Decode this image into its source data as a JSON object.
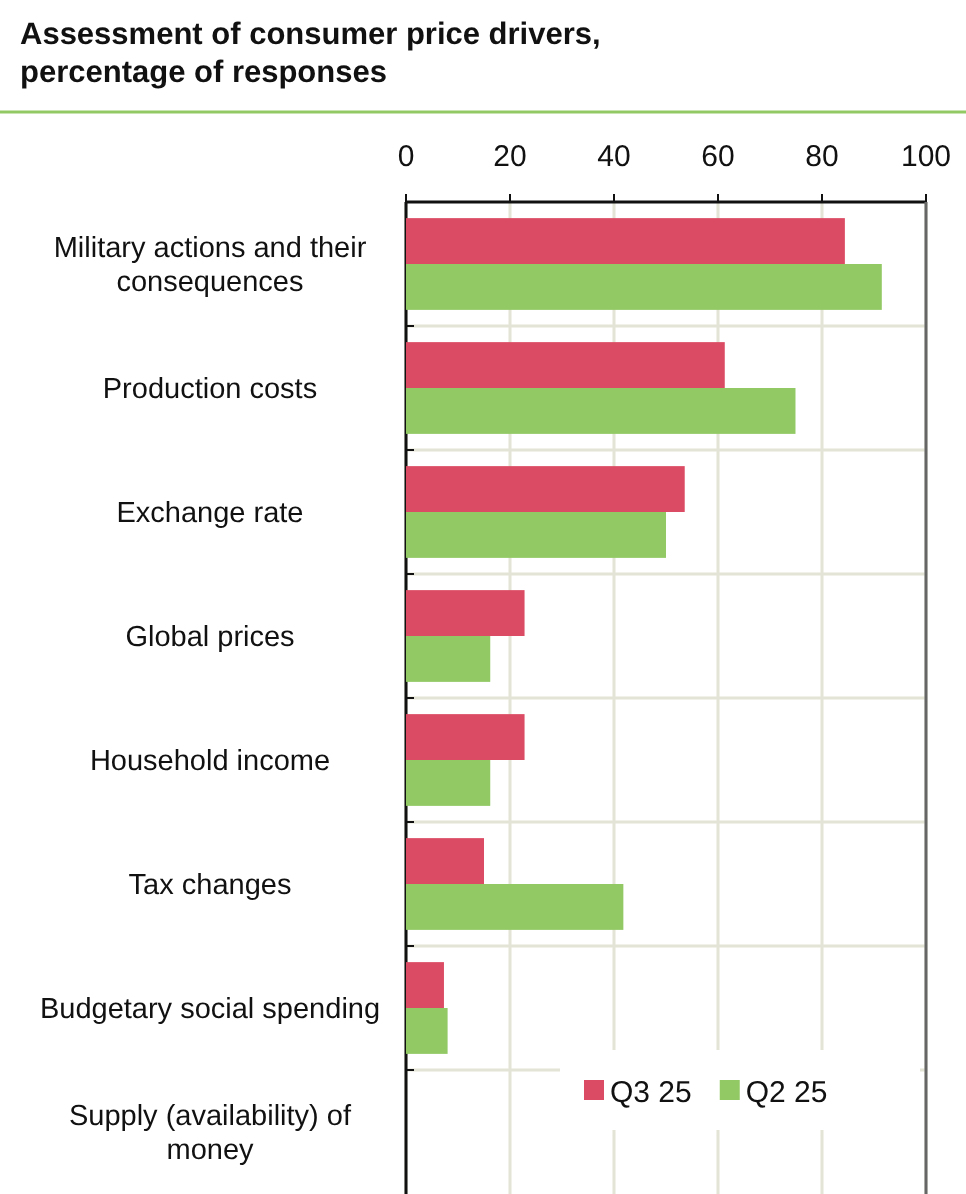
{
  "chart_data": {
    "type": "bar",
    "orientation": "horizontal",
    "title": "Assessment  of consumer price drivers, percentage of responses",
    "categories": [
      "Military actions and their consequences",
      "Production costs",
      "Exchange rate",
      "Global prices",
      "Household income",
      "Tax changes",
      "Budgetary social spending",
      "Supply (availability) of money"
    ],
    "series": [
      {
        "name": "Q3 25",
        "color": "#dc4b64",
        "values": [
          84.4,
          61.3,
          53.6,
          22.8,
          22.8,
          15.0,
          7.3,
          null
        ]
      },
      {
        "name": "Q2 25",
        "color": "#92c965",
        "values": [
          91.5,
          74.9,
          50.0,
          16.2,
          16.2,
          41.8,
          8.0,
          null
        ]
      }
    ],
    "xlim": [
      0,
      100
    ],
    "xticks": [
      0,
      20,
      40,
      60,
      80,
      100
    ],
    "grid": true,
    "legend": "bottom right"
  }
}
